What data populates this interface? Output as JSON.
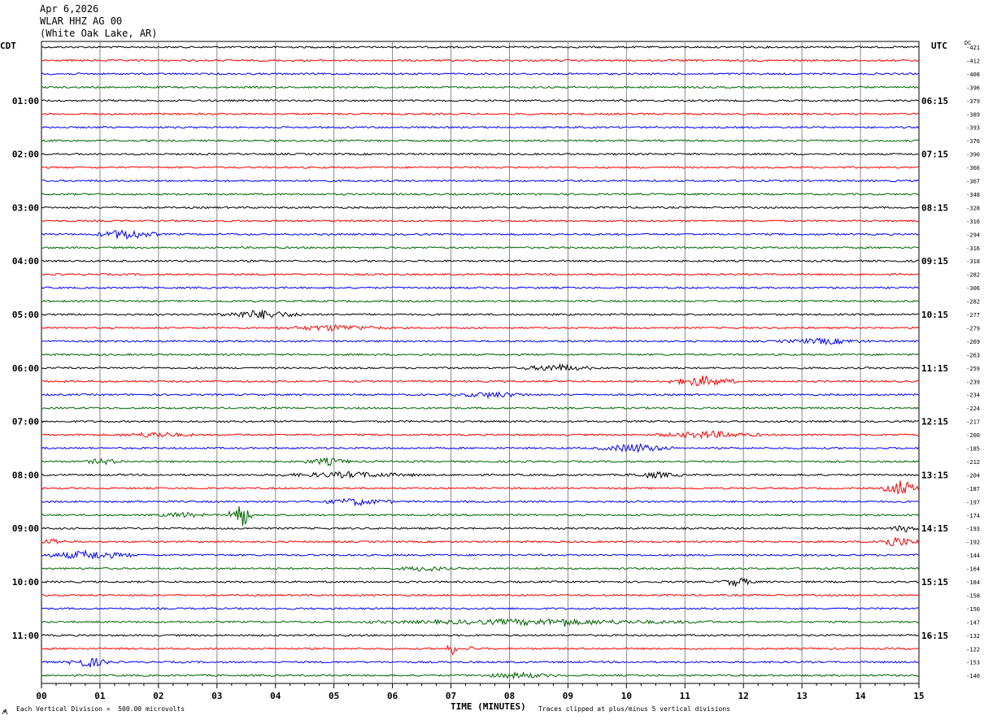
{
  "header": {
    "date": "Apr 6,2026",
    "station": "WLAR HHZ AG 00",
    "location": "(White Oak Lake, AR)"
  },
  "labels": {
    "left_zone": "CDT",
    "right_zone": "UTC",
    "dc": "DC",
    "x_axis": "TIME (MINUTES)",
    "scale_note": "Each Vertical Division =  500.00 microvolts",
    "clip_note": "Traces clipped at plus/minus 5 vertical divisions"
  },
  "chart_data": {
    "type": "line",
    "title": "",
    "xlabel": "TIME (MINUTES)",
    "ylabel": "",
    "xlim": [
      0,
      15
    ],
    "x_ticks": [
      "00",
      "01",
      "02",
      "03",
      "04",
      "05",
      "06",
      "07",
      "08",
      "09",
      "10",
      "11",
      "12",
      "13",
      "14",
      "15"
    ],
    "rows_per_hour": 4,
    "row_minutes": 15,
    "trace_colors": [
      "#000000",
      "#ff0000",
      "#0000ff",
      "#006400"
    ],
    "left_hour_labels": [
      "01:00",
      "02:00",
      "03:00",
      "04:00",
      "05:00",
      "06:00",
      "07:00",
      "08:00",
      "09:00",
      "10:00",
      "11:00"
    ],
    "right_hour_labels": [
      "06:15",
      "07:15",
      "08:15",
      "09:15",
      "10:15",
      "11:15",
      "12:15",
      "13:15",
      "14:15",
      "15:15",
      "16:15"
    ],
    "dc_offsets": [
      -421,
      -412,
      -408,
      -396,
      -379,
      -389,
      -393,
      -376,
      -390,
      -366,
      -367,
      -348,
      -328,
      -316,
      -294,
      -316,
      -318,
      -282,
      -306,
      -282,
      -277,
      -279,
      -269,
      -263,
      -259,
      -239,
      -234,
      -224,
      -217,
      -200,
      -185,
      -212,
      -204,
      -187,
      -197,
      -174,
      -193,
      -192,
      -144,
      -164,
      -184,
      -158,
      -150,
      -147,
      -132,
      -122,
      -153,
      -140
    ],
    "events": [
      {
        "row": 14,
        "start": 0.9,
        "end": 2.0,
        "amp": 6
      },
      {
        "row": 20,
        "start": 3.0,
        "end": 4.5,
        "amp": 5
      },
      {
        "row": 21,
        "start": 4.0,
        "end": 6.0,
        "amp": 3
      },
      {
        "row": 22,
        "start": 12.6,
        "end": 14.2,
        "amp": 3
      },
      {
        "row": 24,
        "start": 8.2,
        "end": 9.4,
        "amp": 4
      },
      {
        "row": 25,
        "start": 10.7,
        "end": 11.9,
        "amp": 6
      },
      {
        "row": 26,
        "start": 7.0,
        "end": 8.4,
        "amp": 3
      },
      {
        "row": 29,
        "start": 1.3,
        "end": 2.6,
        "amp": 3
      },
      {
        "row": 29,
        "start": 10.5,
        "end": 12.3,
        "amp": 4
      },
      {
        "row": 30,
        "start": 9.5,
        "end": 10.8,
        "amp": 5
      },
      {
        "row": 31,
        "start": 0.7,
        "end": 1.4,
        "amp": 3
      },
      {
        "row": 31,
        "start": 4.5,
        "end": 5.3,
        "amp": 4
      },
      {
        "row": 32,
        "start": 4.0,
        "end": 6.5,
        "amp": 3
      },
      {
        "row": 32,
        "start": 10.0,
        "end": 11.0,
        "amp": 3
      },
      {
        "row": 33,
        "start": 14.4,
        "end": 15.0,
        "amp": 10
      },
      {
        "row": 34,
        "start": 4.8,
        "end": 6.0,
        "amp": 4
      },
      {
        "row": 35,
        "start": 2.0,
        "end": 2.8,
        "amp": 3
      },
      {
        "row": 35,
        "start": 3.2,
        "end": 3.6,
        "amp": 18
      },
      {
        "row": 36,
        "start": 14.5,
        "end": 15.0,
        "amp": 4
      },
      {
        "row": 37,
        "start": 0.0,
        "end": 0.4,
        "amp": 4
      },
      {
        "row": 37,
        "start": 14.2,
        "end": 15.0,
        "amp": 6
      },
      {
        "row": 38,
        "start": 0.0,
        "end": 1.6,
        "amp": 5
      },
      {
        "row": 39,
        "start": 6.1,
        "end": 7.0,
        "amp": 3
      },
      {
        "row": 40,
        "start": 11.6,
        "end": 12.2,
        "amp": 5
      },
      {
        "row": 43,
        "start": 5.5,
        "end": 11.5,
        "amp": 3
      },
      {
        "row": 43,
        "start": 8.8,
        "end": 9.1,
        "amp": 6
      },
      {
        "row": 45,
        "start": 6.9,
        "end": 7.1,
        "amp": 9
      },
      {
        "row": 45,
        "start": 7.3,
        "end": 7.4,
        "amp": 6
      },
      {
        "row": 46,
        "start": 0.4,
        "end": 1.2,
        "amp": 6
      },
      {
        "row": 47,
        "start": 7.5,
        "end": 8.8,
        "amp": 3
      }
    ]
  }
}
